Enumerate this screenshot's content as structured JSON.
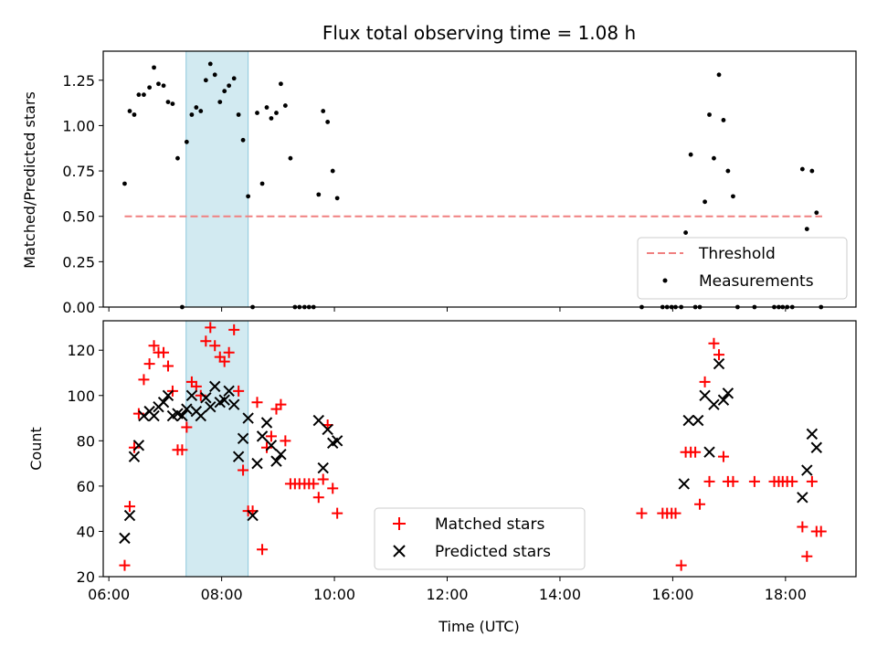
{
  "colors": {
    "matched": "#ff0000",
    "predicted": "#000000",
    "measurements": "#000000",
    "threshold": "#f08080",
    "span": "#add8e6"
  },
  "chart_data": [
    {
      "type": "scatter",
      "title": "Flux total observing time = 1.08 h",
      "xlabel": "",
      "ylabel": "Matched/Predicted stars",
      "x_unit": "hours UTC",
      "xlim": [
        5.9,
        19.25
      ],
      "ylim": [
        0.0,
        1.41
      ],
      "yticks": [
        0.0,
        0.25,
        0.5,
        0.75,
        1.0,
        1.25
      ],
      "ytick_labels": [
        "0.00",
        "0.25",
        "0.50",
        "0.75",
        "1.00",
        "1.25"
      ],
      "grid": false,
      "legend": "lower-right",
      "legend_entries": [
        "Threshold",
        "Measurements"
      ],
      "highlight_span": [
        7.37,
        8.47
      ],
      "threshold": {
        "name": "Threshold",
        "value": 0.5,
        "x_range": [
          6.28,
          18.65
        ]
      },
      "series": [
        {
          "name": "Measurements",
          "points": [
            [
              6.28,
              0.68
            ],
            [
              6.37,
              1.08
            ],
            [
              6.45,
              1.06
            ],
            [
              6.53,
              1.17
            ],
            [
              6.62,
              1.17
            ],
            [
              6.72,
              1.21
            ],
            [
              6.8,
              1.32
            ],
            [
              6.88,
              1.23
            ],
            [
              6.97,
              1.22
            ],
            [
              7.05,
              1.13
            ],
            [
              7.13,
              1.12
            ],
            [
              7.22,
              0.82
            ],
            [
              7.3,
              0.0
            ],
            [
              7.38,
              0.91
            ],
            [
              7.47,
              1.06
            ],
            [
              7.55,
              1.1
            ],
            [
              7.63,
              1.08
            ],
            [
              7.72,
              1.25
            ],
            [
              7.8,
              1.34
            ],
            [
              7.88,
              1.28
            ],
            [
              7.97,
              1.13
            ],
            [
              8.05,
              1.19
            ],
            [
              8.13,
              1.22
            ],
            [
              8.22,
              1.26
            ],
            [
              8.3,
              1.06
            ],
            [
              8.38,
              0.92
            ],
            [
              8.47,
              0.61
            ],
            [
              8.55,
              0.0
            ],
            [
              8.63,
              1.07
            ],
            [
              8.72,
              0.68
            ],
            [
              8.8,
              1.1
            ],
            [
              8.88,
              1.04
            ],
            [
              8.97,
              1.07
            ],
            [
              9.05,
              1.23
            ],
            [
              9.13,
              1.11
            ],
            [
              9.22,
              0.82
            ],
            [
              9.3,
              0.0
            ],
            [
              9.38,
              0.0
            ],
            [
              9.47,
              0.0
            ],
            [
              9.55,
              0.0
            ],
            [
              9.63,
              0.0
            ],
            [
              9.72,
              0.62
            ],
            [
              9.8,
              1.08
            ],
            [
              9.88,
              1.02
            ],
            [
              9.97,
              0.75
            ],
            [
              10.05,
              0.6
            ],
            [
              15.45,
              0.0
            ],
            [
              15.82,
              0.0
            ],
            [
              15.9,
              0.0
            ],
            [
              15.98,
              0.0
            ],
            [
              16.05,
              0.0
            ],
            [
              16.15,
              0.0
            ],
            [
              16.23,
              0.41
            ],
            [
              16.32,
              0.84
            ],
            [
              16.4,
              0.0
            ],
            [
              16.48,
              0.0
            ],
            [
              16.57,
              0.58
            ],
            [
              16.65,
              1.06
            ],
            [
              16.73,
              0.82
            ],
            [
              16.82,
              1.28
            ],
            [
              16.9,
              1.03
            ],
            [
              16.98,
              0.75
            ],
            [
              17.07,
              0.61
            ],
            [
              17.15,
              0.0
            ],
            [
              17.45,
              0.0
            ],
            [
              17.8,
              0.0
            ],
            [
              17.88,
              0.0
            ],
            [
              17.95,
              0.0
            ],
            [
              18.03,
              0.0
            ],
            [
              18.12,
              0.0
            ],
            [
              18.3,
              0.76
            ],
            [
              18.38,
              0.43
            ],
            [
              18.47,
              0.75
            ],
            [
              18.55,
              0.52
            ],
            [
              18.63,
              0.0
            ]
          ]
        }
      ]
    },
    {
      "type": "scatter",
      "title": "",
      "xlabel": "Time (UTC)",
      "ylabel": "Count",
      "x_unit": "hours UTC",
      "xlim": [
        5.9,
        19.25
      ],
      "ylim": [
        20,
        133
      ],
      "xticks": [
        6,
        8,
        10,
        12,
        14,
        16,
        18
      ],
      "xtick_labels": [
        "06:00",
        "08:00",
        "10:00",
        "12:00",
        "14:00",
        "16:00",
        "18:00"
      ],
      "yticks": [
        20,
        40,
        60,
        80,
        100,
        120
      ],
      "ytick_labels": [
        "20",
        "40",
        "60",
        "80",
        "100",
        "120"
      ],
      "grid": false,
      "legend": "lower-center",
      "legend_entries": [
        "Matched stars",
        "Predicted stars"
      ],
      "highlight_span": [
        7.37,
        8.47
      ],
      "series": [
        {
          "name": "Matched stars",
          "marker": "plus",
          "points": [
            [
              6.28,
              25
            ],
            [
              6.37,
              51
            ],
            [
              6.45,
              77
            ],
            [
              6.53,
              92
            ],
            [
              6.62,
              107
            ],
            [
              6.72,
              114
            ],
            [
              6.8,
              122
            ],
            [
              6.88,
              119
            ],
            [
              6.97,
              119
            ],
            [
              7.05,
              113
            ],
            [
              7.13,
              102
            ],
            [
              7.22,
              76
            ],
            [
              7.3,
              76
            ],
            [
              7.38,
              86
            ],
            [
              7.47,
              106
            ],
            [
              7.55,
              104
            ],
            [
              7.63,
              100
            ],
            [
              7.72,
              124
            ],
            [
              7.8,
              130
            ],
            [
              7.88,
              122
            ],
            [
              7.97,
              117
            ],
            [
              8.05,
              115
            ],
            [
              8.13,
              119
            ],
            [
              8.22,
              129
            ],
            [
              8.3,
              102
            ],
            [
              8.38,
              67
            ],
            [
              8.47,
              49
            ],
            [
              8.55,
              49
            ],
            [
              8.63,
              97
            ],
            [
              8.72,
              32
            ],
            [
              8.8,
              77
            ],
            [
              8.88,
              82
            ],
            [
              8.97,
              94
            ],
            [
              9.05,
              96
            ],
            [
              9.13,
              80
            ],
            [
              9.22,
              61
            ],
            [
              9.3,
              61
            ],
            [
              9.38,
              61
            ],
            [
              9.47,
              61
            ],
            [
              9.55,
              61
            ],
            [
              9.63,
              61
            ],
            [
              9.72,
              55
            ],
            [
              9.8,
              63
            ],
            [
              9.88,
              87
            ],
            [
              9.97,
              59
            ],
            [
              10.05,
              48
            ],
            [
              15.45,
              48
            ],
            [
              15.82,
              48
            ],
            [
              15.9,
              48
            ],
            [
              15.98,
              48
            ],
            [
              16.05,
              48
            ],
            [
              16.15,
              25
            ],
            [
              16.23,
              75
            ],
            [
              16.32,
              75
            ],
            [
              16.4,
              75
            ],
            [
              16.48,
              52
            ],
            [
              16.57,
              106
            ],
            [
              16.65,
              62
            ],
            [
              16.73,
              123
            ],
            [
              16.82,
              118
            ],
            [
              16.9,
              73
            ],
            [
              16.98,
              62
            ],
            [
              17.07,
              62
            ],
            [
              17.45,
              62
            ],
            [
              17.8,
              62
            ],
            [
              17.88,
              62
            ],
            [
              17.95,
              62
            ],
            [
              18.03,
              62
            ],
            [
              18.12,
              62
            ],
            [
              18.3,
              42
            ],
            [
              18.38,
              29
            ],
            [
              18.47,
              62
            ],
            [
              18.55,
              40
            ],
            [
              18.63,
              40
            ]
          ]
        },
        {
          "name": "Predicted stars",
          "marker": "x",
          "points": [
            [
              6.28,
              37
            ],
            [
              6.37,
              47
            ],
            [
              6.45,
              73
            ],
            [
              6.53,
              78
            ],
            [
              6.62,
              91
            ],
            [
              6.72,
              93
            ],
            [
              6.8,
              91
            ],
            [
              6.88,
              95
            ],
            [
              6.97,
              97
            ],
            [
              7.05,
              100
            ],
            [
              7.13,
              91
            ],
            [
              7.22,
              92
            ],
            [
              7.3,
              91
            ],
            [
              7.38,
              94
            ],
            [
              7.47,
              100
            ],
            [
              7.55,
              93
            ],
            [
              7.63,
              91
            ],
            [
              7.72,
              99
            ],
            [
              7.8,
              95
            ],
            [
              7.88,
              104
            ],
            [
              7.97,
              97
            ],
            [
              8.05,
              98
            ],
            [
              8.13,
              102
            ],
            [
              8.22,
              96
            ],
            [
              8.3,
              73
            ],
            [
              8.38,
              81
            ],
            [
              8.47,
              90
            ],
            [
              8.55,
              47
            ],
            [
              8.63,
              70
            ],
            [
              8.72,
              82
            ],
            [
              8.8,
              88
            ],
            [
              8.88,
              78
            ],
            [
              8.97,
              71
            ],
            [
              9.05,
              74
            ],
            [
              9.72,
              89
            ],
            [
              9.8,
              68
            ],
            [
              9.88,
              85
            ],
            [
              9.97,
              79
            ],
            [
              10.05,
              80
            ],
            [
              16.2,
              61
            ],
            [
              16.28,
              89
            ],
            [
              16.45,
              89
            ],
            [
              16.57,
              100
            ],
            [
              16.65,
              75
            ],
            [
              16.73,
              96
            ],
            [
              16.82,
              114
            ],
            [
              16.9,
              98
            ],
            [
              16.98,
              101
            ],
            [
              18.3,
              55
            ],
            [
              18.38,
              67
            ],
            [
              18.47,
              83
            ],
            [
              18.55,
              77
            ]
          ]
        }
      ]
    }
  ]
}
